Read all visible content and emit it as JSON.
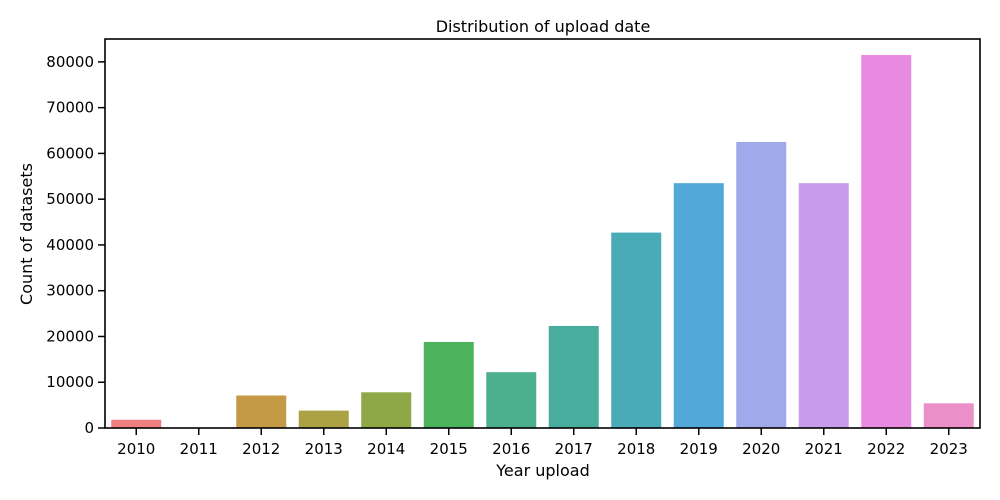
{
  "chart_data": {
    "type": "bar",
    "title": "Distribution of upload date",
    "xlabel": "Year upload",
    "ylabel": "Count of datasets",
    "categories": [
      "2010",
      "2011",
      "2012",
      "2013",
      "2014",
      "2015",
      "2016",
      "2017",
      "2018",
      "2019",
      "2020",
      "2021",
      "2022",
      "2023"
    ],
    "values": [
      1800,
      100,
      7100,
      3800,
      7800,
      18800,
      12200,
      22300,
      42700,
      53500,
      62500,
      53500,
      81500,
      5400
    ],
    "colors": [
      "#f08080",
      "#e28e5f",
      "#c59a47",
      "#aca145",
      "#8ea747",
      "#4cb25b",
      "#4cb08f",
      "#49ad9e",
      "#4aabb8",
      "#52a9d9",
      "#a0aaea",
      "#c89cea",
      "#e78ae0",
      "#ea8fc7"
    ],
    "ylim": [
      0,
      85000
    ],
    "yticks": [
      0,
      10000,
      20000,
      30000,
      40000,
      50000,
      60000,
      70000,
      80000
    ],
    "grid": false,
    "legend": "none"
  }
}
